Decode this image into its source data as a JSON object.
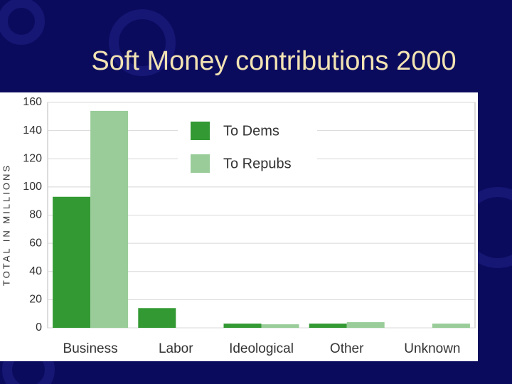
{
  "chart_data": {
    "type": "bar",
    "title": "Soft Money contributions 2000",
    "y_label": "TOTAL IN MILLIONS",
    "categories": [
      "Business",
      "Labor",
      "Ideological",
      "Other",
      "Unknown"
    ],
    "series": [
      {
        "name": "To Dems",
        "color": "#339933",
        "values": [
          93,
          14,
          3,
          3,
          0
        ]
      },
      {
        "name": "To Repubs",
        "color": "#99cc99",
        "values": [
          154,
          0,
          2.5,
          4,
          3
        ]
      }
    ],
    "ylim": [
      0,
      160
    ],
    "yticks": [
      0,
      20,
      40,
      60,
      80,
      100,
      120,
      140,
      160
    ],
    "grid": true
  }
}
